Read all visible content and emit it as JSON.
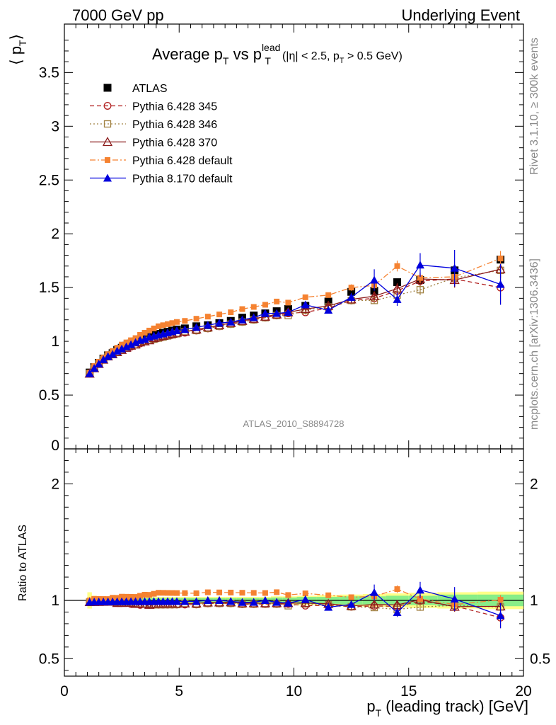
{
  "header": {
    "left": "7000 GeV pp",
    "right": "Underlying Event"
  },
  "side": {
    "rivet": "Rivet 3.1.10, ≥ 300k events",
    "mcplots": "mcplots.cern.ch [arXiv:1306.3436]"
  },
  "chart_data": {
    "type": "line",
    "title_main": "Average p",
    "title_sub_t1": "T",
    "title_vs": " vs p",
    "title_sup": "lead",
    "title_sub_t2": "T",
    "title_cut_1": "(|η| < 2.5, p",
    "title_cut_sub": "T",
    "title_cut_2": " > 0.5 GeV)",
    "analysis_id": "ATLAS_2010_S8894728",
    "ylabel": "⟨ p",
    "ylabel_sub": "T",
    "ylabel_close": "⟩",
    "ratio_ylabel": "Ratio to ATLAS",
    "xlabel_p": "p",
    "xlabel_sub": "T",
    "xlabel_rest": " (leading track) [GeV]",
    "xlim": [
      0,
      20
    ],
    "ylim": [
      0,
      3.95
    ],
    "ratio_ylim": [
      0.35,
      2.3
    ],
    "x_ticks": [
      0,
      5,
      10,
      15,
      20
    ],
    "y_ticks": [
      0.5,
      1,
      1.5,
      2,
      2.5,
      3,
      3.5
    ],
    "y_tick_labels": [
      "0.5",
      "1",
      "1.5",
      "2",
      "2.5",
      "3",
      "3.5"
    ],
    "y_zero_label": "0",
    "ratio_ticks": [
      0.5,
      1,
      2
    ],
    "ratio_tick_labels": [
      "0.5",
      "1",
      "2"
    ],
    "x": [
      1.1,
      1.3,
      1.5,
      1.7,
      1.9,
      2.1,
      2.3,
      2.5,
      2.7,
      2.9,
      3.1,
      3.3,
      3.5,
      3.7,
      3.9,
      4.1,
      4.3,
      4.5,
      4.7,
      4.9,
      5.25,
      5.75,
      6.25,
      6.75,
      7.25,
      7.75,
      8.25,
      8.75,
      9.25,
      9.75,
      10.5,
      11.5,
      12.5,
      13.5,
      14.5,
      15.5,
      17,
      19
    ],
    "atlas": [
      0.71,
      0.76,
      0.8,
      0.84,
      0.87,
      0.89,
      0.92,
      0.94,
      0.96,
      0.98,
      1.0,
      1.02,
      1.03,
      1.05,
      1.06,
      1.07,
      1.08,
      1.09,
      1.1,
      1.11,
      1.12,
      1.14,
      1.15,
      1.17,
      1.19,
      1.22,
      1.24,
      1.26,
      1.28,
      1.3,
      1.33,
      1.37,
      1.46,
      1.47,
      1.55,
      1.57,
      1.66,
      1.76
    ],
    "band_inner": [
      0.02,
      0.02,
      0.02,
      0.02,
      0.02,
      0.02,
      0.02,
      0.02,
      0.02,
      0.02,
      0.02,
      0.02,
      0.02,
      0.02,
      0.02,
      0.02,
      0.02,
      0.02,
      0.02,
      0.02,
      0.02,
      0.02,
      0.02,
      0.02,
      0.02,
      0.02,
      0.02,
      0.02,
      0.025,
      0.025,
      0.03,
      0.03,
      0.035,
      0.035,
      0.04,
      0.04,
      0.05,
      0.05
    ],
    "band_outer": [
      0.07,
      0.04,
      0.03,
      0.03,
      0.03,
      0.03,
      0.03,
      0.03,
      0.03,
      0.03,
      0.03,
      0.03,
      0.03,
      0.03,
      0.03,
      0.03,
      0.03,
      0.03,
      0.03,
      0.03,
      0.03,
      0.03,
      0.03,
      0.03,
      0.03,
      0.03,
      0.03,
      0.03,
      0.035,
      0.035,
      0.04,
      0.045,
      0.05,
      0.055,
      0.06,
      0.065,
      0.07,
      0.075
    ],
    "series": [
      {
        "name": "ATLAS",
        "legend_label": "ATLAS",
        "color": "#000000",
        "marker": "square-filled",
        "line": "none",
        "values": [
          0.71,
          0.76,
          0.8,
          0.84,
          0.87,
          0.89,
          0.92,
          0.94,
          0.96,
          0.98,
          1.0,
          1.02,
          1.03,
          1.05,
          1.06,
          1.07,
          1.08,
          1.09,
          1.1,
          1.11,
          1.12,
          1.14,
          1.15,
          1.17,
          1.19,
          1.22,
          1.24,
          1.26,
          1.28,
          1.3,
          1.33,
          1.37,
          1.46,
          1.47,
          1.55,
          1.57,
          1.66,
          1.76
        ]
      },
      {
        "name": "Pythia 6.428 345",
        "legend_label": "Pythia 6.428 345",
        "color": "#b22222",
        "marker": "circle-open",
        "line": "dashed",
        "values": [
          0.7,
          0.75,
          0.79,
          0.83,
          0.86,
          0.88,
          0.9,
          0.92,
          0.94,
          0.95,
          0.97,
          0.98,
          1.0,
          1.01,
          1.02,
          1.03,
          1.04,
          1.05,
          1.06,
          1.07,
          1.08,
          1.1,
          1.12,
          1.14,
          1.16,
          1.18,
          1.2,
          1.22,
          1.24,
          1.26,
          1.27,
          1.31,
          1.38,
          1.4,
          1.47,
          1.56,
          1.58,
          1.5
        ],
        "errors": [
          0,
          0,
          0,
          0,
          0,
          0,
          0,
          0,
          0,
          0,
          0,
          0,
          0,
          0,
          0,
          0,
          0,
          0,
          0,
          0,
          0,
          0,
          0,
          0,
          0,
          0,
          0,
          0,
          0,
          0,
          0.02,
          0.02,
          0.03,
          0.04,
          0.05,
          0.06,
          0.08,
          0.16
        ]
      },
      {
        "name": "Pythia 6.428 346",
        "legend_label": "Pythia 6.428 346",
        "color": "#a08040",
        "marker": "square-open",
        "line": "dotted",
        "values": [
          0.7,
          0.75,
          0.79,
          0.83,
          0.86,
          0.88,
          0.9,
          0.92,
          0.94,
          0.96,
          0.97,
          0.99,
          1.0,
          1.01,
          1.02,
          1.03,
          1.04,
          1.05,
          1.06,
          1.07,
          1.09,
          1.1,
          1.12,
          1.14,
          1.16,
          1.18,
          1.2,
          1.22,
          1.24,
          1.24,
          1.29,
          1.32,
          1.38,
          1.38,
          1.43,
          1.48,
          1.59,
          1.66
        ],
        "errors": [
          0,
          0,
          0,
          0,
          0,
          0,
          0,
          0,
          0,
          0,
          0,
          0,
          0,
          0,
          0,
          0,
          0,
          0,
          0,
          0,
          0,
          0,
          0,
          0,
          0,
          0,
          0,
          0,
          0,
          0,
          0.02,
          0.02,
          0.03,
          0.03,
          0.04,
          0.05,
          0.06,
          0.07
        ]
      },
      {
        "name": "Pythia 6.428 370",
        "legend_label": "Pythia 6.428 370",
        "color": "#8b1a1a",
        "marker": "triangle-open",
        "line": "solid",
        "values": [
          0.7,
          0.75,
          0.79,
          0.83,
          0.86,
          0.88,
          0.9,
          0.92,
          0.94,
          0.96,
          0.97,
          0.99,
          1.0,
          1.01,
          1.03,
          1.04,
          1.05,
          1.06,
          1.07,
          1.08,
          1.09,
          1.11,
          1.13,
          1.15,
          1.17,
          1.19,
          1.21,
          1.23,
          1.25,
          1.27,
          1.3,
          1.33,
          1.39,
          1.42,
          1.49,
          1.58,
          1.57,
          1.67
        ],
        "errors": [
          0,
          0,
          0,
          0,
          0,
          0,
          0,
          0,
          0,
          0,
          0,
          0,
          0,
          0,
          0,
          0,
          0,
          0,
          0,
          0,
          0,
          0,
          0,
          0,
          0,
          0,
          0,
          0,
          0,
          0,
          0.02,
          0.02,
          0.03,
          0.04,
          0.05,
          0.06,
          0.07,
          0.08
        ]
      },
      {
        "name": "Pythia 6.428 default",
        "legend_label": "Pythia 6.428 default",
        "color": "#f58231",
        "marker": "square-filled-small",
        "line": "dashdot",
        "values": [
          0.71,
          0.77,
          0.81,
          0.85,
          0.88,
          0.91,
          0.94,
          0.97,
          0.99,
          1.01,
          1.03,
          1.06,
          1.08,
          1.1,
          1.12,
          1.14,
          1.15,
          1.16,
          1.17,
          1.18,
          1.19,
          1.21,
          1.23,
          1.25,
          1.27,
          1.3,
          1.32,
          1.34,
          1.37,
          1.36,
          1.41,
          1.43,
          1.5,
          1.52,
          1.7,
          1.59,
          1.6,
          1.77
        ],
        "errors": [
          0,
          0,
          0,
          0,
          0,
          0,
          0,
          0,
          0,
          0,
          0,
          0,
          0,
          0,
          0,
          0,
          0,
          0,
          0,
          0,
          0,
          0,
          0,
          0,
          0,
          0,
          0,
          0,
          0,
          0,
          0.02,
          0.02,
          0.03,
          0.04,
          0.05,
          0.05,
          0.06,
          0.07
        ]
      },
      {
        "name": "Pythia 8.170 default",
        "legend_label": "Pythia 8.170 default",
        "color": "#0000dd",
        "marker": "triangle-filled",
        "line": "solid",
        "values": [
          0.7,
          0.75,
          0.79,
          0.83,
          0.86,
          0.88,
          0.91,
          0.93,
          0.95,
          0.97,
          0.99,
          1.01,
          1.02,
          1.04,
          1.05,
          1.06,
          1.07,
          1.08,
          1.09,
          1.1,
          1.11,
          1.13,
          1.15,
          1.17,
          1.18,
          1.2,
          1.22,
          1.26,
          1.26,
          1.27,
          1.34,
          1.29,
          1.41,
          1.57,
          1.39,
          1.71,
          1.68,
          1.53
        ],
        "errors": [
          0,
          0,
          0,
          0,
          0,
          0,
          0,
          0,
          0,
          0,
          0,
          0,
          0,
          0,
          0,
          0,
          0,
          0,
          0,
          0,
          0,
          0,
          0,
          0,
          0,
          0,
          0,
          0,
          0,
          0,
          0.03,
          0.03,
          0.04,
          0.1,
          0.06,
          0.11,
          0.17,
          0.19
        ]
      }
    ]
  }
}
